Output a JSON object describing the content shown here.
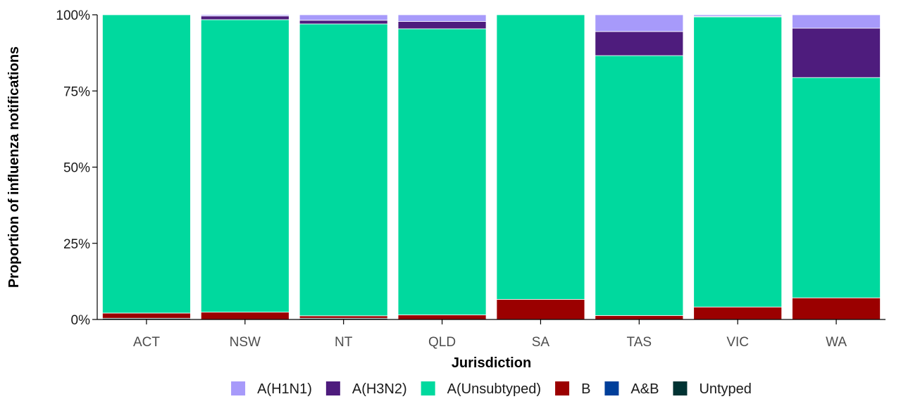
{
  "chart_data": {
    "type": "bar",
    "stacked": true,
    "normalized": true,
    "xlabel": "Jurisdiction",
    "ylabel": "Proportion of influenza notifications",
    "ylim": [
      0,
      1
    ],
    "yticks": [
      0,
      0.25,
      0.5,
      0.75,
      1
    ],
    "ytick_labels": [
      "0%",
      "25%",
      "50%",
      "75%",
      "100%"
    ],
    "categories": [
      "ACT",
      "NSW",
      "NT",
      "QLD",
      "SA",
      "TAS",
      "VIC",
      "WA"
    ],
    "legend_position": "bottom",
    "grid": false,
    "series": [
      {
        "name": "Untyped",
        "color": "#003333",
        "values": [
          0.004,
          0.0,
          0.004,
          0.0,
          0.0,
          0.0,
          0.0,
          0.0
        ]
      },
      {
        "name": "A&B",
        "color": "#003f9a",
        "values": [
          0.0,
          0.0,
          0.0,
          0.0,
          0.0,
          0.0,
          0.0,
          0.0
        ]
      },
      {
        "name": "B",
        "color": "#9b0000",
        "values": [
          0.017,
          0.024,
          0.008,
          0.015,
          0.066,
          0.013,
          0.041,
          0.071
        ]
      },
      {
        "name": "A(Unsubtyped)",
        "color": "#00d99e",
        "values": [
          0.979,
          0.96,
          0.958,
          0.939,
          0.934,
          0.853,
          0.952,
          0.723
        ]
      },
      {
        "name": "A(H3N2)",
        "color": "#4e1c7d",
        "values": [
          0.0,
          0.012,
          0.012,
          0.024,
          0.0,
          0.079,
          0.002,
          0.162
        ]
      },
      {
        "name": "A(H1N1)",
        "color": "#a79afa",
        "values": [
          0.0,
          0.004,
          0.018,
          0.022,
          0.0,
          0.055,
          0.005,
          0.044
        ]
      }
    ],
    "legend_order": [
      "A(H1N1)",
      "A(H3N2)",
      "A(Unsubtyped)",
      "B",
      "A&B",
      "Untyped"
    ]
  }
}
